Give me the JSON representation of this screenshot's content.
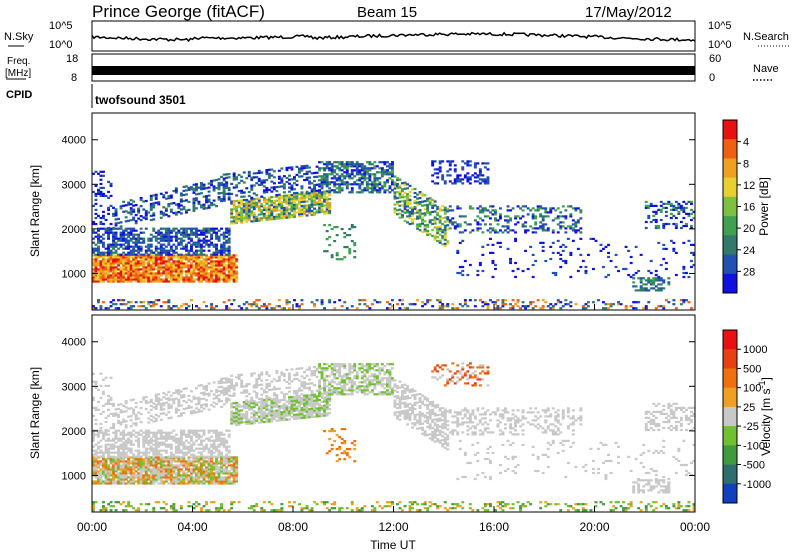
{
  "header": {
    "title": "Prince George (fitACF)",
    "beam": "Beam 15",
    "date": "17/May/2012"
  },
  "noise_panel": {
    "left_label": "N.Sky",
    "right_label": "N.Search",
    "left_ticks": [
      "10^5",
      "10^0"
    ],
    "right_ticks": [
      "10^5",
      "10^0"
    ]
  },
  "freq_panel": {
    "left_label_line1": "Freq.",
    "left_label_line2": "[MHz]",
    "right_label": "Nave",
    "left_ticks": [
      "18",
      "8"
    ],
    "right_ticks": [
      "60",
      "0"
    ]
  },
  "cpid_panel": {
    "label": "CPID",
    "value": "twofsound 3501"
  },
  "chart_data": [
    {
      "type": "heatmap",
      "quantity": "Power",
      "ylabel": "Slant Range [km]",
      "ylim": [
        180,
        4600
      ],
      "yticks": [
        "1000",
        "2000",
        "3000",
        "4000"
      ],
      "xlim": [
        0,
        24
      ],
      "colorbar": {
        "label": "Power [dB]",
        "ticks": [
          "4",
          "8",
          "12",
          "16",
          "20",
          "24",
          "28"
        ],
        "colors": [
          "#1010e0",
          "#2050b0",
          "#2f7a6a",
          "#3fa050",
          "#80c040",
          "#e8d030",
          "#f0a020",
          "#f06010",
          "#e81010"
        ]
      }
    },
    {
      "type": "heatmap",
      "quantity": "Velocity",
      "ylabel": "Slant Range [km]",
      "ylim": [
        180,
        4600
      ],
      "yticks": [
        "1000",
        "2000",
        "3000",
        "4000"
      ],
      "xlim": [
        0,
        24
      ],
      "xticks": [
        "00:00",
        "04:00",
        "08:00",
        "12:00",
        "16:00",
        "20:00",
        "00:00"
      ],
      "xlabel": "Time UT",
      "colorbar": {
        "label": "Velocity [m s",
        "label_sup": "-1",
        "label_end": "]",
        "ticks": [
          "1000",
          "500",
          "100",
          "25",
          "-25",
          "-100",
          "-500",
          "-1000"
        ],
        "colors": [
          "#1040c0",
          "#2f6e6e",
          "#3f9a40",
          "#70c030",
          "#c8c8c8",
          "#f0a020",
          "#f07010",
          "#e84010",
          "#e81010"
        ]
      }
    }
  ]
}
